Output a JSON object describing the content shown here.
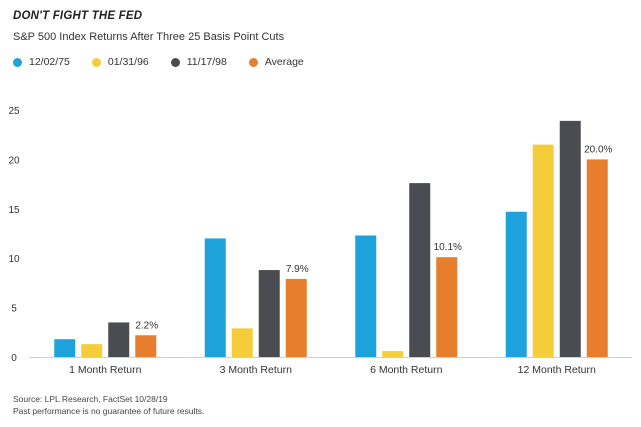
{
  "header": {
    "title": "DON'T FIGHT THE FED",
    "subtitle": "S&P 500 Index Returns After Three 25 Basis Point Cuts"
  },
  "footer": {
    "source": "Source: LPL Research, FactSet  10/28/19",
    "disclaimer": "Past performance is no guarantee of future results."
  },
  "chart_data": {
    "type": "bar",
    "title": "",
    "categories": [
      "1 Month Return",
      "3 Month Return",
      "6 Month Return",
      "12 Month Return"
    ],
    "series": [
      {
        "name": "12/02/75",
        "color": "#1ea2dc",
        "values": [
          1.8,
          12.0,
          12.3,
          14.7
        ]
      },
      {
        "name": "01/31/96",
        "color": "#f5cd3a",
        "values": [
          1.3,
          2.9,
          0.6,
          21.5
        ]
      },
      {
        "name": "11/17/98",
        "color": "#4a4c51",
        "values": [
          3.5,
          8.8,
          17.6,
          23.9
        ]
      },
      {
        "name": "Average",
        "color": "#e67e2d",
        "values": [
          2.2,
          7.9,
          10.1,
          20.0
        ]
      }
    ],
    "data_labels": [
      "2.2%",
      "7.9%",
      "10.1%",
      "20.0%"
    ],
    "data_label_series": "Average",
    "yticks": [
      0,
      5,
      10,
      15,
      20,
      25
    ],
    "ylim": [
      0,
      25
    ],
    "xlabel": "",
    "ylabel": "",
    "grid": false,
    "legend_position": "top-left"
  }
}
